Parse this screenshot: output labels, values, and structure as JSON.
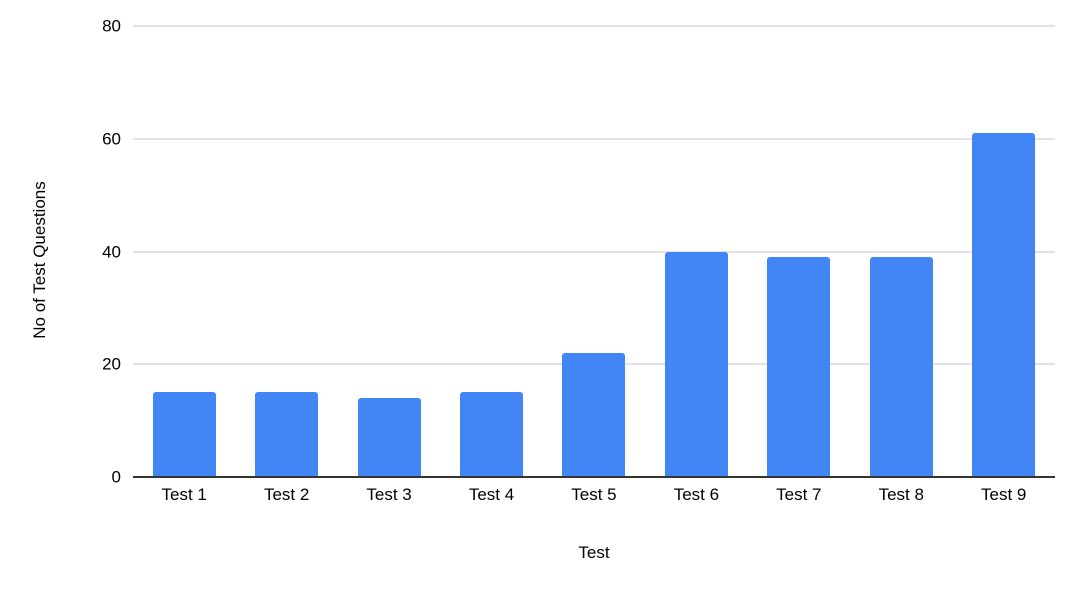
{
  "chart_data": {
    "type": "bar",
    "categories": [
      "Test 1",
      "Test 2",
      "Test 3",
      "Test 4",
      "Test 5",
      "Test 6",
      "Test 7",
      "Test 8",
      "Test 9"
    ],
    "values": [
      15,
      15,
      14,
      15,
      22,
      40,
      39,
      39,
      61
    ],
    "xlabel": "Test",
    "ylabel": "No of Test Questions",
    "ylim": [
      0,
      80
    ],
    "yticks": [
      0,
      20,
      40,
      60,
      80
    ],
    "grid": true,
    "legend_position": "none",
    "bar_color": "#4285f4",
    "gridline_color": "#e3e3e3",
    "axis_line_color": "#333333",
    "text_color": "#000000",
    "background_color": "#ffffff"
  }
}
